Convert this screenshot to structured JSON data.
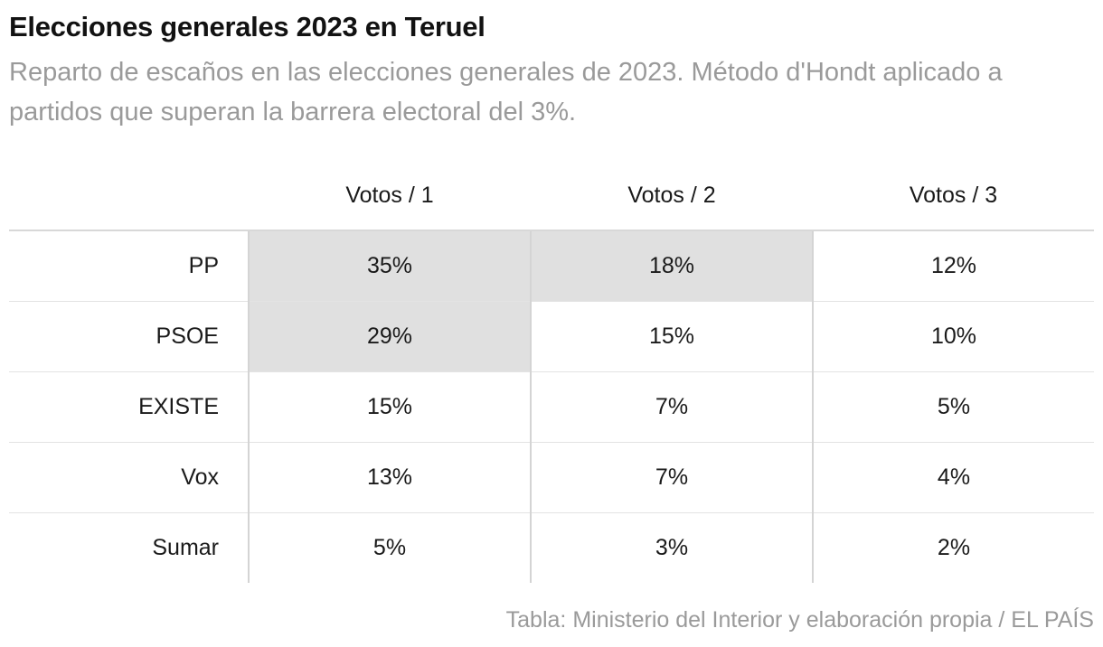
{
  "title": "Elecciones generales 2023 en Teruel",
  "subtitle": "Reparto de escaños en las elecciones generales de 2023. Método d'Hondt aplicado a partidos que superan la barrera electoral del 3%.",
  "source": "Tabla: Ministerio del Interior y elaboración propia / EL PAÍS",
  "highlight_color": "#e0e0e0",
  "chart_data": {
    "type": "table",
    "columns": [
      "Votos / 1",
      "Votos / 2",
      "Votos / 3"
    ],
    "rows": [
      {
        "party": "PP",
        "values": [
          "35%",
          "18%",
          "12%"
        ],
        "seat_awarded": [
          true,
          true,
          false
        ]
      },
      {
        "party": "PSOE",
        "values": [
          "29%",
          "15%",
          "10%"
        ],
        "seat_awarded": [
          true,
          false,
          false
        ]
      },
      {
        "party": "EXISTE",
        "values": [
          "15%",
          "7%",
          "5%"
        ],
        "seat_awarded": [
          false,
          false,
          false
        ]
      },
      {
        "party": "Vox",
        "values": [
          "13%",
          "7%",
          "4%"
        ],
        "seat_awarded": [
          false,
          false,
          false
        ]
      },
      {
        "party": "Sumar",
        "values": [
          "5%",
          "3%",
          "2%"
        ],
        "seat_awarded": [
          false,
          false,
          false
        ]
      }
    ]
  }
}
